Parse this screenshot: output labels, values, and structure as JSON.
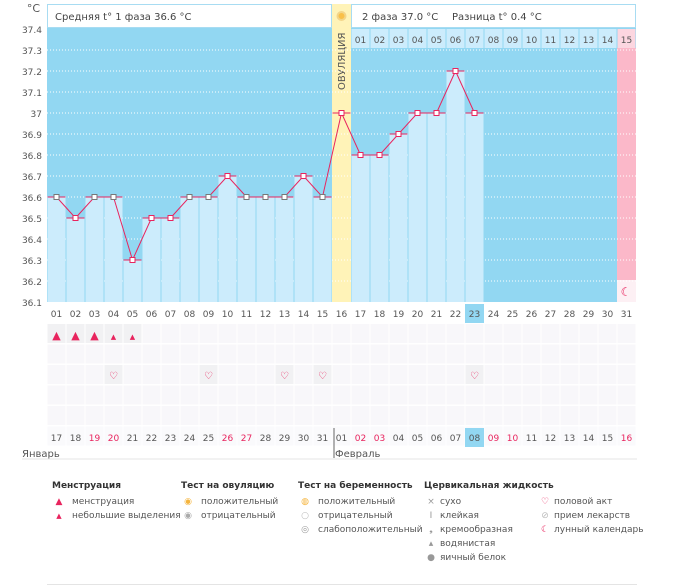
{
  "chart_data": {
    "type": "line",
    "ylabel": "°C",
    "ylim": [
      36.1,
      37.4
    ],
    "yticks": [
      "37.4",
      "37.3",
      "37.2",
      "37.1",
      "37",
      "36.9",
      "36.8",
      "36.7",
      "36.6",
      "36.5",
      "36.4",
      "36.3",
      "36.2",
      "36.1"
    ],
    "phase1_label": "Средняя t° 1 фаза 36.6 °C",
    "phase2_label": "2 фаза 37.0 °C",
    "diff_label": "Разница t° 0.4 °C",
    "ovulation_label": "ОВУЛЯЦИЯ",
    "ovulation_day": 16,
    "current_day": 23,
    "cycle_days": [
      "01",
      "02",
      "03",
      "04",
      "05",
      "06",
      "07",
      "08",
      "09",
      "10",
      "11",
      "12",
      "13",
      "14",
      "15",
      "16",
      "17",
      "18",
      "19",
      "20",
      "21",
      "22",
      "23",
      "24",
      "25",
      "26",
      "27",
      "28",
      "29",
      "30",
      "31"
    ],
    "luteal_days": [
      "01",
      "02",
      "03",
      "04",
      "05",
      "06",
      "07",
      "08",
      "09",
      "10",
      "11",
      "12",
      "13",
      "14",
      "15"
    ],
    "temperatures": [
      36.6,
      36.5,
      36.6,
      36.6,
      36.3,
      36.5,
      36.5,
      36.6,
      36.6,
      36.7,
      36.6,
      36.6,
      36.6,
      36.7,
      36.6,
      37.0,
      36.8,
      36.8,
      36.9,
      37.0,
      37.0,
      37.2,
      37.0
    ],
    "dates": [
      "17",
      "18",
      "19",
      "20",
      "21",
      "22",
      "23",
      "24",
      "25",
      "26",
      "27",
      "28",
      "29",
      "30",
      "31",
      "01",
      "02",
      "03",
      "04",
      "05",
      "06",
      "07",
      "08",
      "09",
      "10",
      "11",
      "12",
      "13",
      "14",
      "15",
      "16"
    ],
    "weekend_dates": [
      3,
      4,
      10,
      11,
      17,
      18,
      24,
      25,
      31
    ],
    "months": [
      {
        "label": "Январь",
        "start": 1
      },
      {
        "label": "Февраль",
        "start": 16
      }
    ],
    "menstruation": [
      {
        "day": 1,
        "type": "heavy"
      },
      {
        "day": 2,
        "type": "heavy"
      },
      {
        "day": 3,
        "type": "heavy"
      },
      {
        "day": 4,
        "type": "light"
      },
      {
        "day": 5,
        "type": "light"
      }
    ],
    "intercourse_days": [
      4,
      9,
      13,
      15,
      23
    ],
    "colors": {
      "plot": "#92d7f2",
      "bar": "#ccecfc",
      "line": "#e8245e",
      "ovulation": "#fff3b8",
      "late": "#fbb8c9",
      "today": "#92d7f2"
    }
  },
  "legend": {
    "menstruation": {
      "title": "Менструация",
      "items": [
        "менструация",
        "небольшие выделения"
      ]
    },
    "ovulation_test": {
      "title": "Тест на овуляцию",
      "items": [
        "положительный",
        "отрицательный"
      ]
    },
    "pregnancy_test": {
      "title": "Тест на беременность",
      "items": [
        "положительный",
        "отрицательный",
        "слабоположительный"
      ]
    },
    "cervical": {
      "title": "Цервикальная жидкость",
      "items": [
        "сухо",
        "клейкая",
        "кремообразная",
        "водянистая",
        "яичный белок"
      ]
    },
    "other": {
      "items": [
        "половой акт",
        "прием лекарств",
        "лунный календарь"
      ]
    }
  }
}
